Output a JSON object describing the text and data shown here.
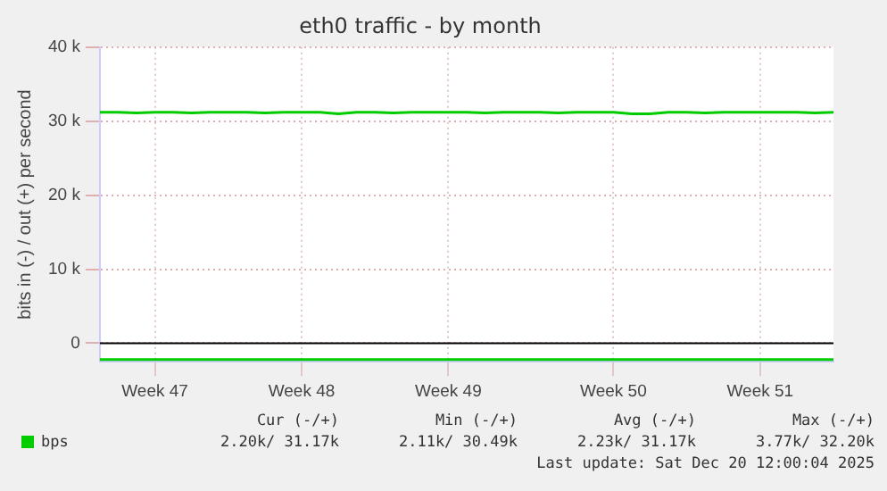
{
  "chart_data": {
    "type": "line",
    "title": "eth0 traffic - by month",
    "ylabel": "bits in (-) / out (+) per second",
    "categories": [
      null,
      null,
      null,
      "Week 47",
      null,
      null,
      null,
      null,
      null,
      null,
      null,
      "Week 48",
      null,
      null,
      null,
      null,
      null,
      null,
      null,
      "Week 49",
      null,
      null,
      null,
      null,
      null,
      null,
      null,
      null,
      "Week 50",
      null,
      null,
      null,
      null,
      null,
      null,
      null,
      "Week 51",
      null,
      null,
      null,
      null
    ],
    "series": [
      {
        "name": "bps",
        "color": "#00cc00",
        "values": [
          31200,
          31200,
          31100,
          31200,
          31200,
          31100,
          31200,
          31200,
          31200,
          31100,
          31200,
          31200,
          31200,
          31000,
          31200,
          31200,
          31100,
          31200,
          31200,
          31200,
          31200,
          31100,
          31200,
          31200,
          31200,
          31100,
          31200,
          31200,
          31200,
          31000,
          31000,
          31200,
          31200,
          31100,
          31200,
          31200,
          31200,
          31200,
          31200,
          31100,
          31200
        ]
      },
      {
        "color": "#00cc00",
        "values": [
          -2200,
          -2200,
          -2200,
          -2200,
          -2200,
          -2200,
          -2200,
          -2200,
          -2200,
          -2200,
          -2200,
          -2200,
          -2200,
          -2200,
          -2200,
          -2200,
          -2200,
          -2200,
          -2200,
          -2200,
          -2200,
          -2200,
          -2200,
          -2200,
          -2200,
          -2200,
          -2200,
          -2200,
          -2200,
          -2200,
          -2200,
          -2200,
          -2200,
          -2200,
          -2200,
          -2200,
          -2200,
          -2200,
          -2200,
          -2200,
          -2200
        ]
      }
    ],
    "ylim": [
      -2500,
      40000
    ],
    "yticks": [
      {
        "value": 0,
        "label": "0"
      },
      {
        "value": 10000,
        "label": "10 k"
      },
      {
        "value": 20000,
        "label": "20 k"
      },
      {
        "value": 30000,
        "label": "30 k"
      },
      {
        "value": 40000,
        "label": "40 k"
      }
    ],
    "ref_lines": [
      {
        "axis": "y",
        "value": 0,
        "color": "#000000"
      }
    ],
    "grid": true,
    "legend": "bottom left",
    "marker": "none",
    "line_style": "solid",
    "annotations": [
      "Cur (-/+)",
      "Min (-/+)",
      "Avg (-/+)",
      "Max (-/+)",
      "2.20k/ 31.17k",
      "2.11k/ 30.49k",
      "2.23k/ 31.17k",
      "3.77k/ 32.20k",
      "Last update: Sat Dec 20 12:00:04 2025"
    ]
  }
}
